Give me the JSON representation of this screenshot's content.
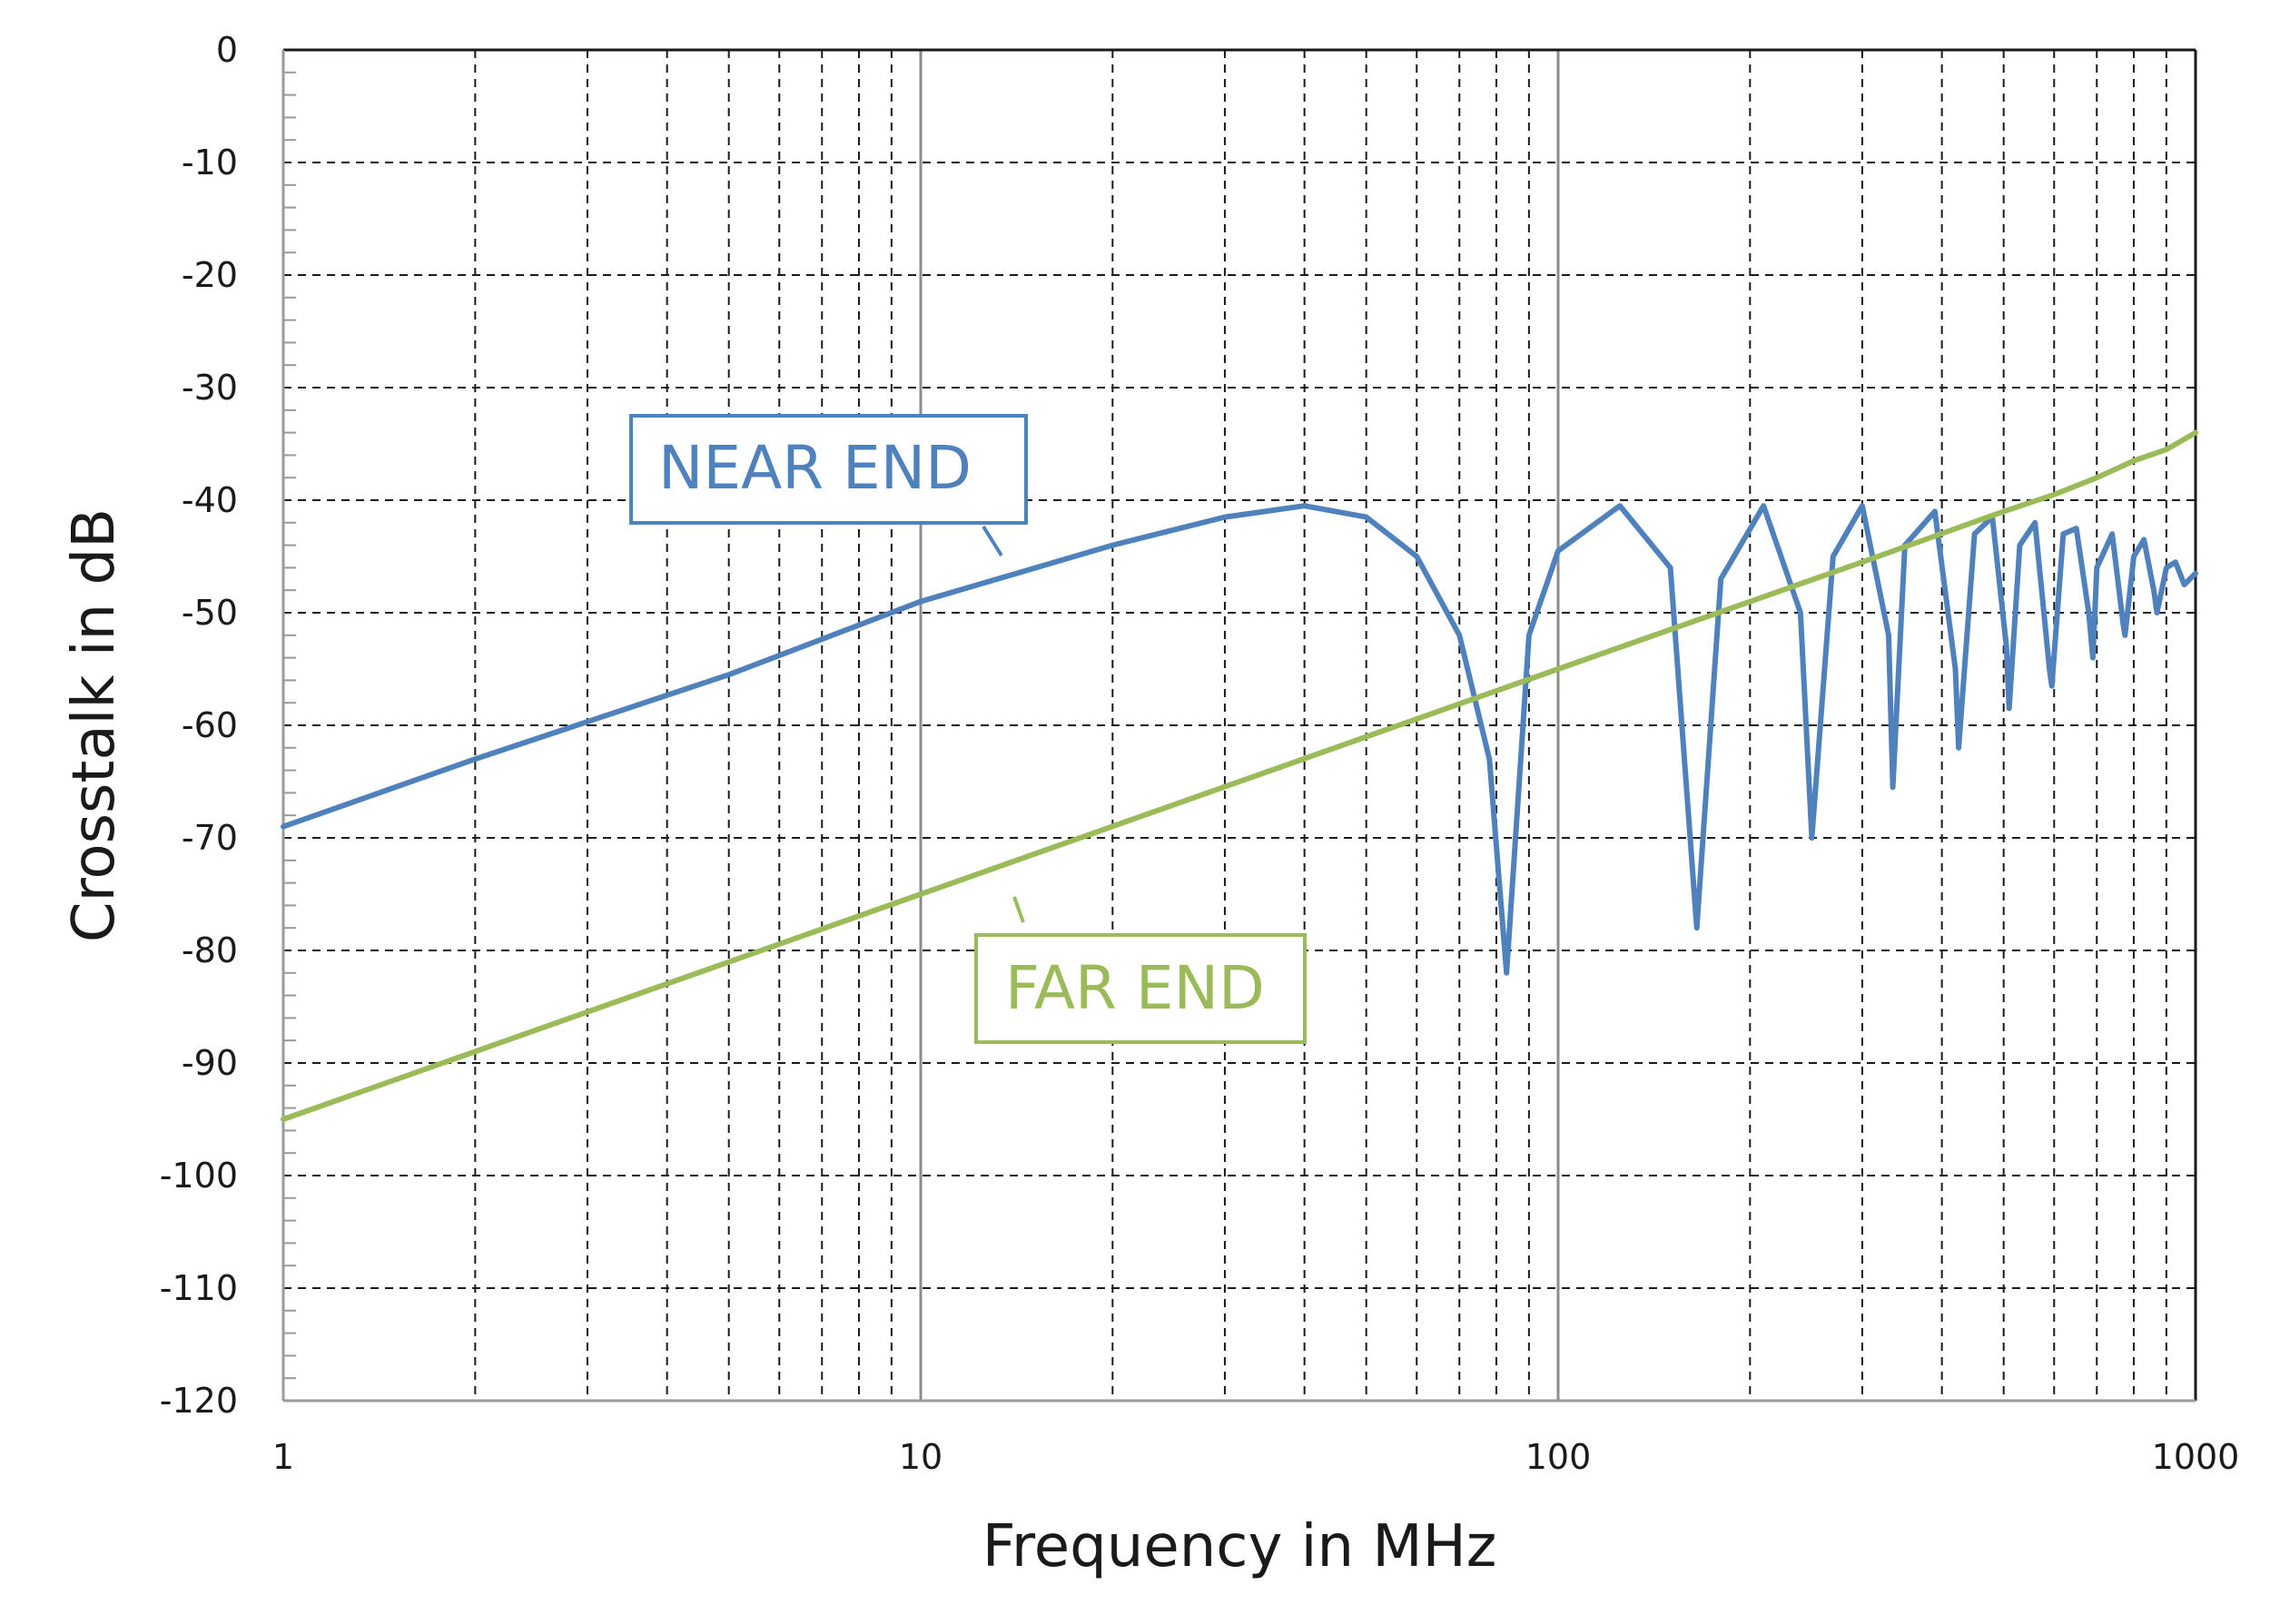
{
  "chart_data": {
    "type": "line",
    "title": "",
    "xlabel": "Frequency in MHz",
    "ylabel": "Crosstalk in dB",
    "x_scale": "log",
    "xlim": [
      1,
      1000
    ],
    "ylim": [
      -120,
      0
    ],
    "x_ticks": [
      "1",
      "10",
      "100",
      "1000"
    ],
    "y_ticks": [
      "0",
      "-10",
      "-20",
      "-30",
      "-40",
      "-50",
      "-60",
      "-70",
      "-80",
      "-90",
      "-100",
      "-110",
      "-120"
    ],
    "grid": true,
    "legend": "none",
    "annotations": [
      {
        "text": "NEAR END",
        "series": "near",
        "color": "#4f81bd"
      },
      {
        "text": "FAR END",
        "series": "far",
        "color": "#9bbb59"
      }
    ],
    "series": [
      {
        "id": "near",
        "color": "#4f81bd",
        "x": [
          1,
          2,
          5,
          10,
          20,
          30,
          40,
          50,
          60,
          70,
          78,
          83,
          90,
          100,
          125,
          150,
          165,
          180,
          210,
          240,
          250,
          270,
          300,
          330,
          335,
          350,
          390,
          420,
          425,
          450,
          480,
          505,
          510,
          530,
          560,
          590,
          595,
          620,
          650,
          680,
          690,
          700,
          740,
          770,
          775,
          800,
          830,
          860,
          870,
          900,
          930,
          960,
          1000
        ],
        "y": [
          -69,
          -63,
          -55.5,
          -49,
          -44,
          -41.5,
          -40.5,
          -41.5,
          -45,
          -52,
          -63,
          -82,
          -52,
          -44.5,
          -40.5,
          -46,
          -78,
          -47,
          -40.5,
          -50,
          -70,
          -45,
          -40.5,
          -52,
          -65.5,
          -44,
          -41,
          -55,
          -62,
          -43,
          -41.5,
          -53,
          -58.5,
          -44,
          -42,
          -55,
          -56.5,
          -43,
          -42.5,
          -50,
          -54,
          -46,
          -43,
          -51,
          -52,
          -45,
          -43.5,
          -48,
          -50,
          -46,
          -45.5,
          -47.5,
          -46.5
        ]
      },
      {
        "id": "far",
        "color": "#9bbb59",
        "x": [
          1,
          10,
          100,
          300,
          500,
          600,
          700,
          800,
          900,
          1000
        ],
        "y": [
          -95,
          -75,
          -55,
          -45.5,
          -41,
          -39.5,
          -38,
          -36.5,
          -35.5,
          -34
        ]
      }
    ]
  }
}
